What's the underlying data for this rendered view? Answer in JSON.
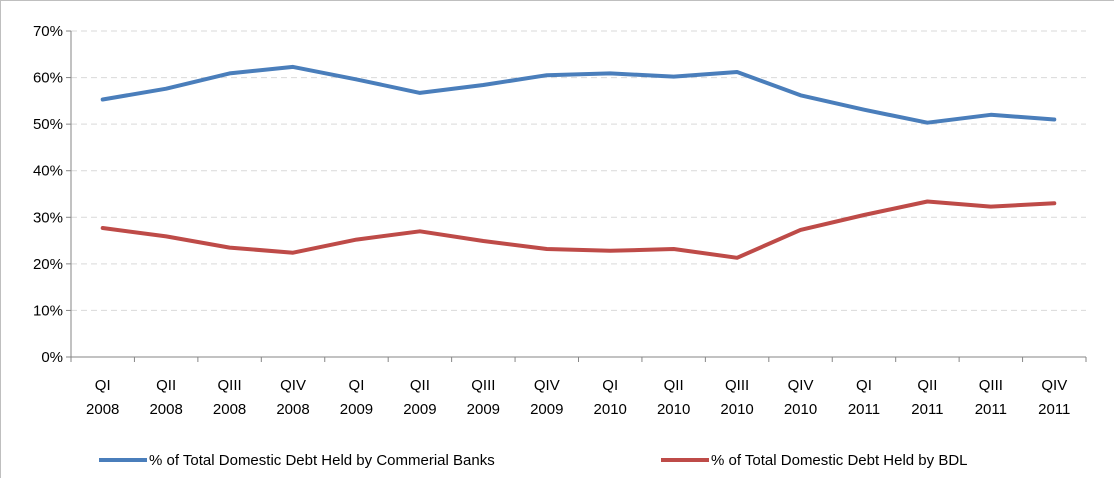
{
  "chart_data": {
    "type": "line",
    "categories": [
      [
        "QI",
        "2008"
      ],
      [
        "QII",
        "2008"
      ],
      [
        "QIII",
        "2008"
      ],
      [
        "QIV",
        "2008"
      ],
      [
        "QI",
        "2009"
      ],
      [
        "QII",
        "2009"
      ],
      [
        "QIII",
        "2009"
      ],
      [
        "QIV",
        "2009"
      ],
      [
        "QI",
        "2010"
      ],
      [
        "QII",
        "2010"
      ],
      [
        "QIII",
        "2010"
      ],
      [
        "QIV",
        "2010"
      ],
      [
        "QI",
        "2011"
      ],
      [
        "QII",
        "2011"
      ],
      [
        "QIII",
        "2011"
      ],
      [
        "QIV",
        "2011"
      ]
    ],
    "y_ticks": [
      "0%",
      "10%",
      "20%",
      "30%",
      "40%",
      "50%",
      "60%",
      "70%"
    ],
    "ylim": [
      0,
      70
    ],
    "grid": "horizontal-dashed",
    "legend_position": "bottom",
    "series": [
      {
        "name": "% of Total Domestic Debt Held by Commerial Banks",
        "color": "#4a7ebb",
        "values": [
          55.3,
          57.6,
          60.9,
          62.3,
          59.6,
          56.7,
          58.4,
          60.5,
          60.9,
          60.2,
          61.2,
          56.2,
          53.1,
          50.3,
          52.0,
          51.0
        ]
      },
      {
        "name": "% of Total Domestic Debt Held by BDL",
        "color": "#be4b48",
        "values": [
          27.7,
          25.9,
          23.5,
          22.4,
          25.2,
          27.0,
          24.9,
          23.2,
          22.8,
          23.2,
          21.3,
          27.3,
          30.5,
          33.4,
          32.3,
          33.0
        ]
      }
    ]
  }
}
